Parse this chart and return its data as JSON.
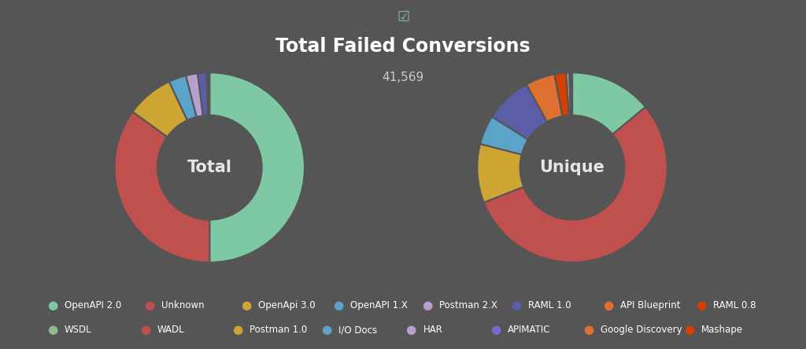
{
  "title": "Total Failed Conversions",
  "subtitle": "41,569",
  "background_color": "#555555",
  "chart_bg": "#4a4a4a",
  "title_color": "#ffffff",
  "subtitle_color": "#cccccc",
  "donut_label_total": "Total",
  "donut_label_unique": "Unique",
  "total_sizes": [
    50,
    35,
    8,
    3,
    2,
    1.5,
    0.3,
    0.2
  ],
  "total_colors": [
    "#7EC8A4",
    "#C0504D",
    "#CDA533",
    "#5BA3C9",
    "#B6A0CC",
    "#5B5EA6",
    "#E07030",
    "#D44000"
  ],
  "unique_sizes": [
    14,
    55,
    10,
    8,
    5,
    1,
    3.5,
    2,
    1,
    0.3,
    0.2
  ],
  "unique_colors": [
    "#7EC8A4",
    "#C0504D",
    "#CDA533",
    "#5B5EA6",
    "#E07030",
    "#B6A0CC",
    "#5BA3C9",
    "#CDA533",
    "#D44000",
    "#B6A0CC",
    "#ffffff"
  ],
  "legend_row1": [
    "OpenAPI 2.0",
    "Unknown",
    "OpenApi 3.0",
    "OpenAPI 1.X",
    "Postman 2.X",
    "RAML 1.0",
    "API Blueprint",
    "RAML 0.8"
  ],
  "legend_row2": [
    "WSDL",
    "WADL",
    "Postman 1.0",
    "I/O Docs",
    "HAR",
    "APIMATIC",
    "Google Discovery",
    "Mashape"
  ],
  "legend_colors_row1": [
    "#7EC8A4",
    "#C0504D",
    "#CDA533",
    "#5BA3C9",
    "#B6A0CC",
    "#5B5EA6",
    "#E07030",
    "#D44000"
  ],
  "legend_colors_row2": [
    "#8FBC8F",
    "#C0504D",
    "#CDA533",
    "#5BA3C9",
    "#B6A0CC",
    "#7B68C8",
    "#E07030",
    "#D44000"
  ]
}
